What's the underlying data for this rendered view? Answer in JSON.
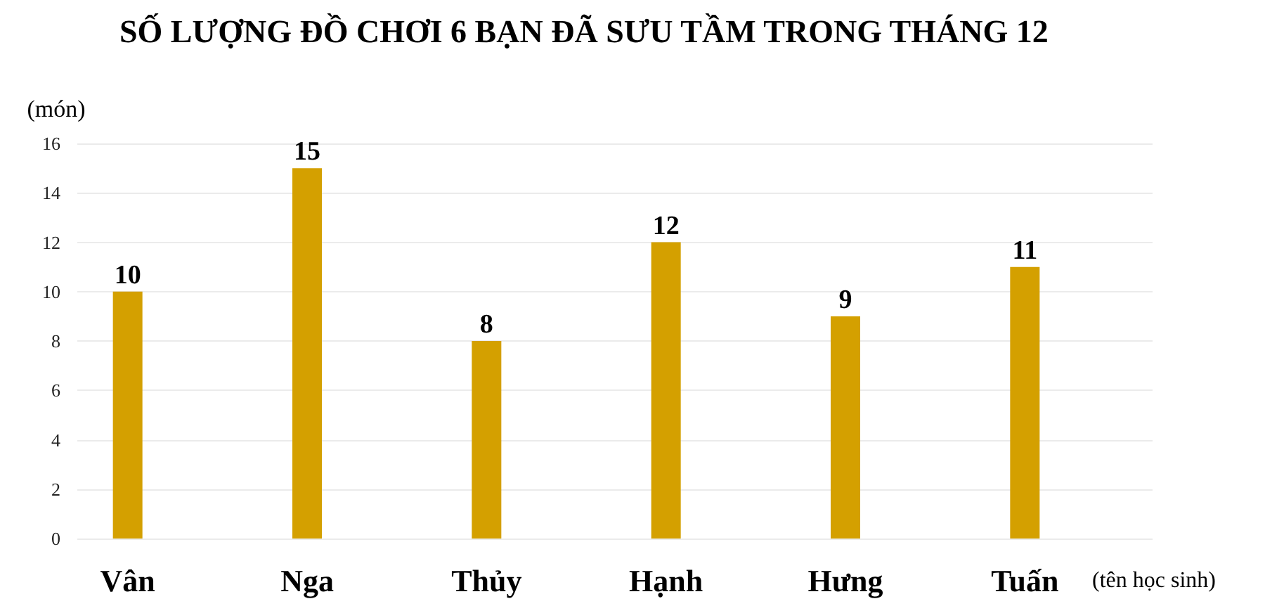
{
  "chart_data": {
    "type": "bar",
    "title": "SỐ LƯỢNG ĐỒ CHƠI 6 BẠN ĐÃ SƯU TẦM TRONG THÁNG 12",
    "xlabel": "(tên học sinh)",
    "ylabel": "(món)",
    "categories": [
      "Vân",
      "Nga",
      "Thủy",
      "Hạnh",
      "Hưng",
      "Tuấn"
    ],
    "values": [
      10,
      15,
      8,
      12,
      9,
      11
    ],
    "color": "#d4a000",
    "ylim": [
      0,
      16
    ],
    "yticks": [
      0,
      2,
      4,
      6,
      8,
      10,
      12,
      14,
      16
    ],
    "grid": "y",
    "data_labels": true
  }
}
